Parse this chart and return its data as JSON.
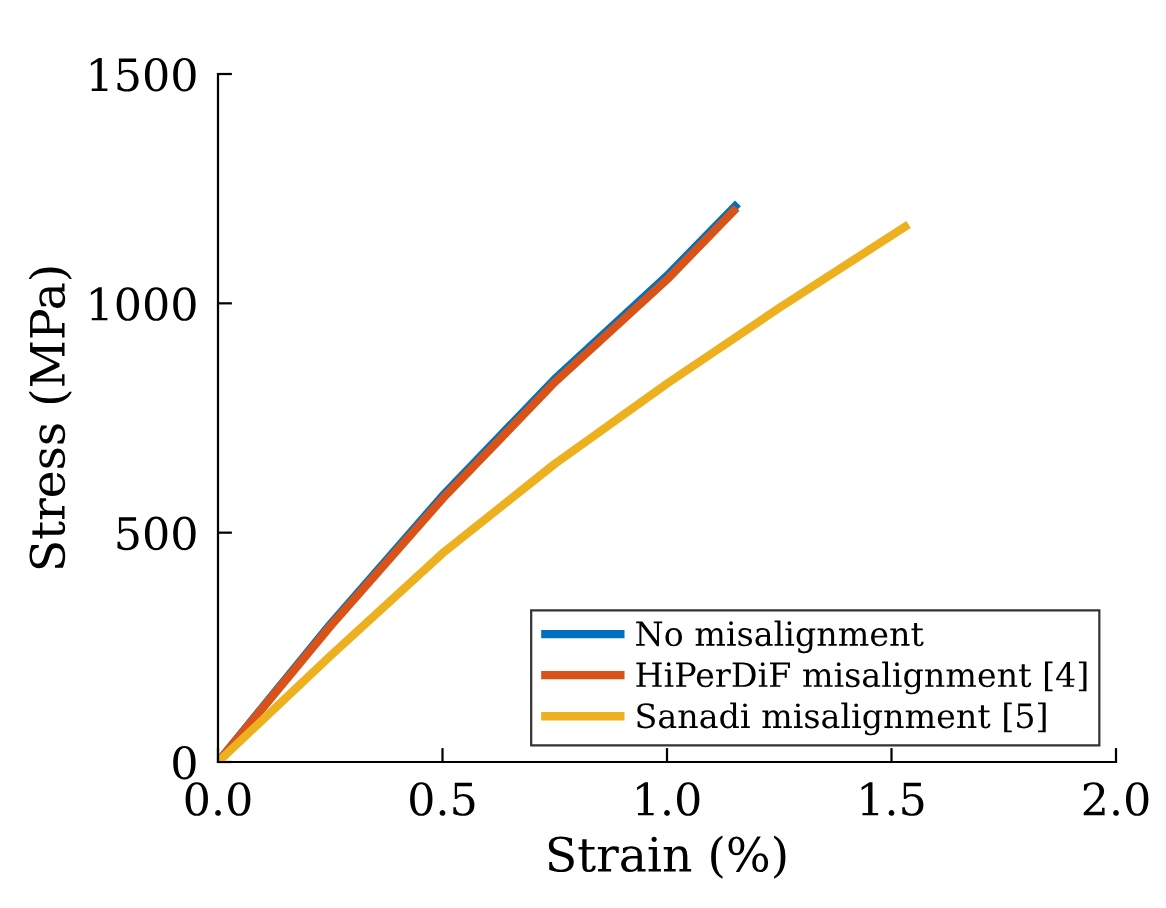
{
  "chart_data": {
    "type": "line",
    "xlabel": "Strain (%)",
    "ylabel": "Stress (MPa)",
    "xlim": [
      0,
      2
    ],
    "xticks": [
      {
        "value": 0,
        "label": "0.0"
      },
      0.5,
      {
        "value": 1,
        "label": "1.0"
      },
      1.5,
      {
        "value": 2,
        "label": "2.0"
      }
    ],
    "ylim": [
      0,
      1500
    ],
    "yticks": [
      0,
      500,
      1000,
      1500
    ],
    "grid": false,
    "legend": "bottom right",
    "marker": "none",
    "line_style": "solid",
    "series": [
      {
        "name": "No misalignment",
        "color": "#0072bd",
        "x": [
          0,
          0.25,
          0.5,
          0.75,
          1.0,
          1.158
        ],
        "values": [
          0,
          300,
          580,
          835,
          1060,
          1218
        ]
      },
      {
        "name": "HiPerDiF misalignment [4]",
        "color": "#d95319",
        "x": [
          0,
          0.25,
          0.5,
          0.75,
          1.0,
          1.155
        ],
        "values": [
          0,
          296,
          574,
          828,
          1052,
          1208
        ]
      },
      {
        "name": "Sanadi misalignment [5]",
        "color": "#edb120",
        "x": [
          0,
          0.25,
          0.5,
          0.75,
          1.0,
          1.25,
          1.538
        ],
        "values": [
          0,
          231,
          455,
          650,
          825,
          990,
          1172
        ]
      }
    ]
  }
}
